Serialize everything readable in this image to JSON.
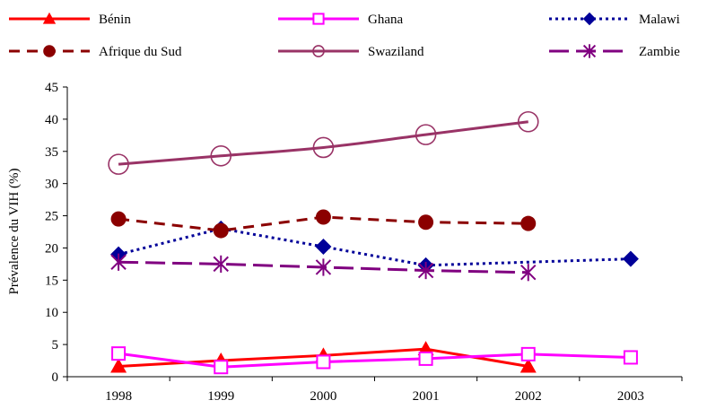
{
  "chart_data": {
    "type": "line",
    "title": "",
    "xlabel": "",
    "ylabel": "Prévalence du VIH (%)",
    "categories": [
      "1998",
      "1999",
      "2000",
      "2001",
      "2002",
      "2003"
    ],
    "ylim": [
      0,
      45
    ],
    "yticks": [
      0,
      5,
      10,
      15,
      20,
      25,
      30,
      35,
      40,
      45
    ],
    "grid": false,
    "legend_position": "top",
    "series": [
      {
        "name": "Bénin",
        "color": "#ff0000",
        "marker": "triangle",
        "dash": "solid",
        "values": [
          1.6,
          2.5,
          3.3,
          4.3,
          1.6,
          null
        ]
      },
      {
        "name": "Ghana",
        "color": "#ff00ff",
        "marker": "square-open",
        "dash": "solid",
        "values": [
          3.6,
          1.5,
          2.3,
          2.8,
          3.5,
          3.0
        ]
      },
      {
        "name": "Malawi",
        "color": "#000099",
        "marker": "diamond",
        "dash": "dotted",
        "values": [
          19.0,
          23.0,
          20.2,
          17.3,
          null,
          18.3
        ]
      },
      {
        "name": "Afrique du Sud",
        "color": "#8b0000",
        "marker": "circle",
        "dash": "dashed",
        "values": [
          24.5,
          22.7,
          24.8,
          24.0,
          23.8,
          null
        ]
      },
      {
        "name": "Swaziland",
        "color": "#993366",
        "marker": "circle-open",
        "dash": "solid",
        "values": [
          33.0,
          34.3,
          35.6,
          37.6,
          39.6,
          null
        ]
      },
      {
        "name": "Zambie",
        "color": "#800080",
        "marker": "star",
        "dash": "longdash",
        "values": [
          17.8,
          17.5,
          17.0,
          16.5,
          16.2,
          null
        ]
      }
    ]
  }
}
